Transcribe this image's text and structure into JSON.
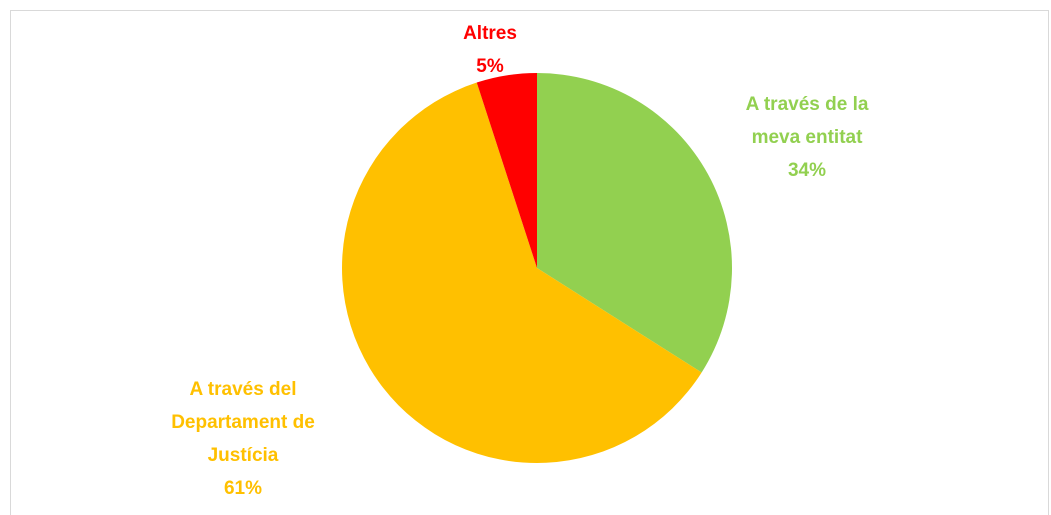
{
  "chart_data": {
    "type": "pie",
    "categories": [
      "A través de la meva entitat",
      "A través del Departament de Justícia",
      "Altres"
    ],
    "values": [
      34,
      61,
      5
    ],
    "value_labels": [
      "34%",
      "61%",
      "5%"
    ],
    "colors": [
      "#92d050",
      "#ffc000",
      "#ff0000"
    ]
  }
}
